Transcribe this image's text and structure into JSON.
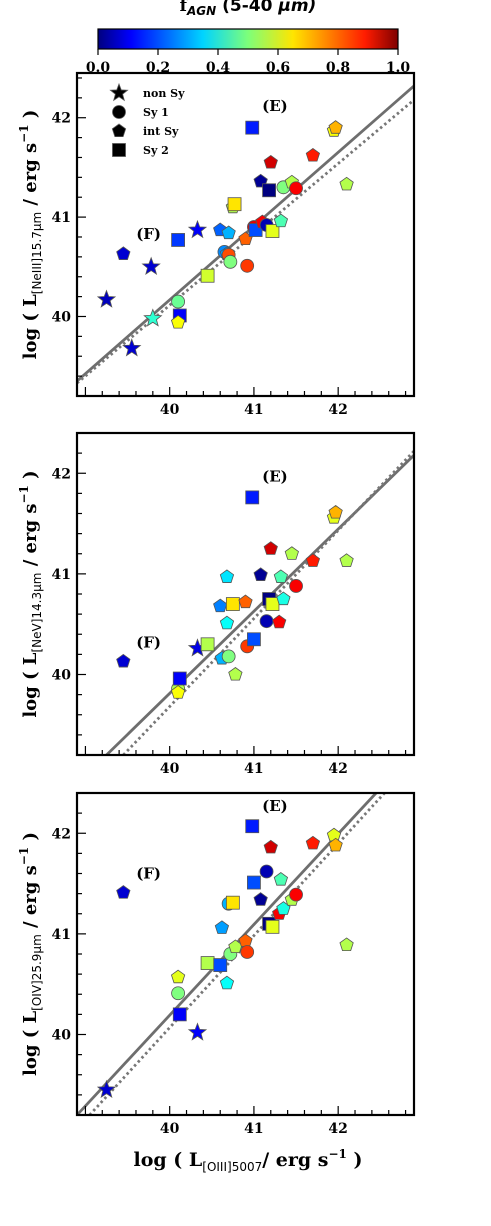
{
  "colorbar": {
    "title_main": "f",
    "title_sub": "AGN",
    "title_range": " (5-40 ",
    "title_unit": "μm)",
    "ticks": [
      "0.0",
      "0.2",
      "0.4",
      "0.6",
      "0.8",
      "1.0"
    ],
    "range": [
      0,
      1
    ],
    "colormap": "jet"
  },
  "legend": {
    "placement": "top-left",
    "entries": [
      {
        "label": "non Sy",
        "marker": "star"
      },
      {
        "label": "Sy 1",
        "marker": "circle"
      },
      {
        "label": "int Sy",
        "marker": "pentagon"
      },
      {
        "label": "Sy 2",
        "marker": "square"
      }
    ]
  },
  "xlabel": {
    "prefix": "log ( L",
    "sub": "[OIII]5007",
    "mid": "/ erg s",
    "sup": "−1",
    "suffix": " )"
  },
  "chart_data": [
    {
      "type": "scatter",
      "ylabel": {
        "prefix": "log ( L",
        "sub": "[NeIII]15.7μm",
        "mid": " / erg s",
        "sup": "−1",
        "suffix": " )"
      },
      "xlim": [
        38.9,
        42.9
      ],
      "ylim": [
        39.2,
        42.45
      ],
      "xticks": [
        "40",
        "41",
        "42"
      ],
      "yticks": [
        "40",
        "41",
        "42"
      ],
      "fit_solid": [
        [
          38.9,
          39.35
        ],
        [
          42.9,
          42.32
        ]
      ],
      "fit_dotted": [
        [
          38.9,
          39.33
        ],
        [
          42.9,
          42.18
        ]
      ],
      "annotations": [
        {
          "text": "(E)",
          "x": 41.25,
          "y": 42.07
        },
        {
          "text": "(F)",
          "x": 39.75,
          "y": 40.78
        }
      ],
      "points": [
        {
          "x": 39.45,
          "y": 40.63,
          "m": "pentagon",
          "f": 0.08
        },
        {
          "x": 39.25,
          "y": 40.17,
          "m": "star",
          "f": 0.06
        },
        {
          "x": 39.55,
          "y": 39.68,
          "m": "star",
          "f": 0.08
        },
        {
          "x": 39.78,
          "y": 40.5,
          "m": "star",
          "f": 0.08
        },
        {
          "x": 39.8,
          "y": 39.98,
          "m": "star",
          "f": 0.42
        },
        {
          "x": 40.1,
          "y": 40.77,
          "m": "square",
          "f": 0.18
        },
        {
          "x": 40.12,
          "y": 40.01,
          "m": "square",
          "f": 0.12
        },
        {
          "x": 40.1,
          "y": 40.15,
          "m": "circle",
          "f": 0.48
        },
        {
          "x": 40.1,
          "y": 39.94,
          "m": "pentagon",
          "f": 0.62
        },
        {
          "x": 40.33,
          "y": 40.87,
          "m": "star",
          "f": 0.12
        },
        {
          "x": 40.45,
          "y": 40.41,
          "m": "square",
          "f": 0.58
        },
        {
          "x": 40.6,
          "y": 40.87,
          "m": "pentagon",
          "f": 0.22
        },
        {
          "x": 40.65,
          "y": 40.65,
          "m": "circle",
          "f": 0.26
        },
        {
          "x": 40.68,
          "y": 40.63,
          "m": "pentagon",
          "f": 0.28
        },
        {
          "x": 40.7,
          "y": 40.84,
          "m": "pentagon",
          "f": 0.3
        },
        {
          "x": 40.7,
          "y": 40.62,
          "m": "circle",
          "f": 0.8
        },
        {
          "x": 40.72,
          "y": 40.55,
          "m": "circle",
          "f": 0.5
        },
        {
          "x": 40.75,
          "y": 41.1,
          "m": "pentagon",
          "f": 0.55
        },
        {
          "x": 40.77,
          "y": 41.13,
          "m": "square",
          "f": 0.65
        },
        {
          "x": 40.9,
          "y": 40.78,
          "m": "pentagon",
          "f": 0.78
        },
        {
          "x": 40.92,
          "y": 40.51,
          "m": "circle",
          "f": 0.82
        },
        {
          "x": 40.98,
          "y": 41.9,
          "m": "square",
          "f": 0.15
        },
        {
          "x": 41.0,
          "y": 40.9,
          "m": "circle",
          "f": 0.9
        },
        {
          "x": 41.02,
          "y": 40.87,
          "m": "square",
          "f": 0.2
        },
        {
          "x": 41.08,
          "y": 41.36,
          "m": "pentagon",
          "f": 0.02
        },
        {
          "x": 41.1,
          "y": 40.95,
          "m": "pentagon",
          "f": 0.88
        },
        {
          "x": 41.15,
          "y": 40.92,
          "m": "circle",
          "f": 0.05
        },
        {
          "x": 41.18,
          "y": 41.27,
          "m": "square",
          "f": 0.0
        },
        {
          "x": 41.2,
          "y": 41.55,
          "m": "pentagon",
          "f": 0.92
        },
        {
          "x": 41.22,
          "y": 40.86,
          "m": "square",
          "f": 0.6
        },
        {
          "x": 41.32,
          "y": 40.96,
          "m": "pentagon",
          "f": 0.45
        },
        {
          "x": 41.35,
          "y": 41.3,
          "m": "circle",
          "f": 0.5
        },
        {
          "x": 41.45,
          "y": 41.35,
          "m": "pentagon",
          "f": 0.55
        },
        {
          "x": 41.5,
          "y": 41.29,
          "m": "circle",
          "f": 0.88
        },
        {
          "x": 41.7,
          "y": 41.62,
          "m": "pentagon",
          "f": 0.85
        },
        {
          "x": 41.95,
          "y": 41.87,
          "m": "pentagon",
          "f": 0.62
        },
        {
          "x": 41.97,
          "y": 41.9,
          "m": "pentagon",
          "f": 0.7
        },
        {
          "x": 42.1,
          "y": 41.33,
          "m": "pentagon",
          "f": 0.55
        }
      ]
    },
    {
      "type": "scatter",
      "ylabel": {
        "prefix": "log ( L",
        "sub": "[NeV]14.3μm",
        "mid": " / erg s",
        "sup": "−1",
        "suffix": " )"
      },
      "xlim": [
        38.9,
        42.9
      ],
      "ylim": [
        39.2,
        42.4
      ],
      "xticks": [
        "40",
        "41",
        "42"
      ],
      "yticks": [
        "40",
        "41",
        "42"
      ],
      "fit_solid": [
        [
          39.25,
          39.2
        ],
        [
          42.9,
          42.18
        ]
      ],
      "fit_dotted": [
        [
          39.45,
          39.2
        ],
        [
          42.9,
          42.22
        ]
      ],
      "annotations": [
        {
          "text": "(E)",
          "x": 41.25,
          "y": 41.92
        },
        {
          "text": "(F)",
          "x": 39.75,
          "y": 40.27
        }
      ],
      "points": [
        {
          "x": 39.45,
          "y": 40.13,
          "m": "pentagon",
          "f": 0.08
        },
        {
          "x": 40.1,
          "y": 39.86,
          "m": "circle",
          "f": 0.55
        },
        {
          "x": 40.1,
          "y": 39.82,
          "m": "pentagon",
          "f": 0.62
        },
        {
          "x": 40.12,
          "y": 39.96,
          "m": "square",
          "f": 0.12
        },
        {
          "x": 40.33,
          "y": 40.26,
          "m": "star",
          "f": 0.1
        },
        {
          "x": 40.45,
          "y": 40.3,
          "m": "square",
          "f": 0.55
        },
        {
          "x": 40.6,
          "y": 40.68,
          "m": "pentagon",
          "f": 0.25
        },
        {
          "x": 40.62,
          "y": 40.16,
          "m": "pentagon",
          "f": 0.3
        },
        {
          "x": 40.68,
          "y": 40.97,
          "m": "pentagon",
          "f": 0.35
        },
        {
          "x": 40.68,
          "y": 40.51,
          "m": "pentagon",
          "f": 0.38
        },
        {
          "x": 40.7,
          "y": 40.18,
          "m": "circle",
          "f": 0.5
        },
        {
          "x": 40.75,
          "y": 40.7,
          "m": "square",
          "f": 0.65
        },
        {
          "x": 40.78,
          "y": 40.0,
          "m": "pentagon",
          "f": 0.55
        },
        {
          "x": 40.9,
          "y": 40.72,
          "m": "pentagon",
          "f": 0.78
        },
        {
          "x": 40.92,
          "y": 40.28,
          "m": "circle",
          "f": 0.82
        },
        {
          "x": 40.98,
          "y": 41.76,
          "m": "square",
          "f": 0.15
        },
        {
          "x": 41.0,
          "y": 40.35,
          "m": "square",
          "f": 0.2
        },
        {
          "x": 41.08,
          "y": 40.99,
          "m": "pentagon",
          "f": 0.02
        },
        {
          "x": 41.15,
          "y": 40.53,
          "m": "circle",
          "f": 0.05
        },
        {
          "x": 41.18,
          "y": 40.75,
          "m": "square",
          "f": 0.0
        },
        {
          "x": 41.2,
          "y": 41.25,
          "m": "pentagon",
          "f": 0.92
        },
        {
          "x": 41.22,
          "y": 40.7,
          "m": "square",
          "f": 0.6
        },
        {
          "x": 41.3,
          "y": 40.52,
          "m": "pentagon",
          "f": 0.88
        },
        {
          "x": 41.32,
          "y": 40.97,
          "m": "pentagon",
          "f": 0.45
        },
        {
          "x": 41.35,
          "y": 40.75,
          "m": "pentagon",
          "f": 0.4
        },
        {
          "x": 41.45,
          "y": 41.2,
          "m": "pentagon",
          "f": 0.55
        },
        {
          "x": 41.5,
          "y": 40.88,
          "m": "circle",
          "f": 0.88
        },
        {
          "x": 41.7,
          "y": 41.13,
          "m": "pentagon",
          "f": 0.85
        },
        {
          "x": 41.95,
          "y": 41.56,
          "m": "pentagon",
          "f": 0.6
        },
        {
          "x": 41.97,
          "y": 41.61,
          "m": "pentagon",
          "f": 0.7
        },
        {
          "x": 42.1,
          "y": 41.13,
          "m": "pentagon",
          "f": 0.55
        }
      ]
    },
    {
      "type": "scatter",
      "ylabel": {
        "prefix": "log ( L",
        "sub": "[OIV]25.9μm",
        "mid": " / erg s",
        "sup": "−1",
        "suffix": " )"
      },
      "xlim": [
        38.9,
        42.9
      ],
      "ylim": [
        39.2,
        42.4
      ],
      "xticks": [
        "40",
        "41",
        "42"
      ],
      "yticks": [
        "40",
        "41",
        "42"
      ],
      "fit_solid": [
        [
          38.9,
          39.2
        ],
        [
          42.45,
          42.4
        ]
      ],
      "fit_dotted": [
        [
          39.05,
          39.2
        ],
        [
          42.55,
          42.4
        ]
      ],
      "annotations": [
        {
          "text": "(E)",
          "x": 41.25,
          "y": 42.22
        },
        {
          "text": "(F)",
          "x": 39.75,
          "y": 41.55
        }
      ],
      "points": [
        {
          "x": 39.45,
          "y": 41.41,
          "m": "pentagon",
          "f": 0.08
        },
        {
          "x": 39.25,
          "y": 39.45,
          "m": "star",
          "f": 0.08
        },
        {
          "x": 40.33,
          "y": 40.02,
          "m": "star",
          "f": 0.12
        },
        {
          "x": 40.1,
          "y": 40.57,
          "m": "pentagon",
          "f": 0.6
        },
        {
          "x": 40.1,
          "y": 40.41,
          "m": "circle",
          "f": 0.5
        },
        {
          "x": 40.12,
          "y": 40.2,
          "m": "square",
          "f": 0.12
        },
        {
          "x": 40.45,
          "y": 40.71,
          "m": "square",
          "f": 0.55
        },
        {
          "x": 40.6,
          "y": 40.69,
          "m": "square",
          "f": 0.2
        },
        {
          "x": 40.62,
          "y": 41.06,
          "m": "pentagon",
          "f": 0.28
        },
        {
          "x": 40.68,
          "y": 40.51,
          "m": "pentagon",
          "f": 0.38
        },
        {
          "x": 40.7,
          "y": 41.3,
          "m": "circle",
          "f": 0.3
        },
        {
          "x": 40.72,
          "y": 40.8,
          "m": "circle",
          "f": 0.5
        },
        {
          "x": 40.75,
          "y": 41.31,
          "m": "square",
          "f": 0.65
        },
        {
          "x": 40.78,
          "y": 40.87,
          "m": "pentagon",
          "f": 0.55
        },
        {
          "x": 40.9,
          "y": 40.93,
          "m": "pentagon",
          "f": 0.78
        },
        {
          "x": 40.92,
          "y": 40.82,
          "m": "circle",
          "f": 0.82
        },
        {
          "x": 40.98,
          "y": 42.07,
          "m": "square",
          "f": 0.15
        },
        {
          "x": 41.0,
          "y": 41.51,
          "m": "square",
          "f": 0.2
        },
        {
          "x": 41.08,
          "y": 41.34,
          "m": "pentagon",
          "f": 0.02
        },
        {
          "x": 41.15,
          "y": 41.62,
          "m": "circle",
          "f": 0.05
        },
        {
          "x": 41.18,
          "y": 41.1,
          "m": "square",
          "f": 0.0
        },
        {
          "x": 41.2,
          "y": 41.86,
          "m": "pentagon",
          "f": 0.92
        },
        {
          "x": 41.22,
          "y": 41.07,
          "m": "square",
          "f": 0.6
        },
        {
          "x": 41.3,
          "y": 41.2,
          "m": "pentagon",
          "f": 0.88
        },
        {
          "x": 41.32,
          "y": 41.54,
          "m": "pentagon",
          "f": 0.45
        },
        {
          "x": 41.35,
          "y": 41.25,
          "m": "pentagon",
          "f": 0.4
        },
        {
          "x": 41.45,
          "y": 41.34,
          "m": "pentagon",
          "f": 0.55
        },
        {
          "x": 41.5,
          "y": 41.39,
          "m": "circle",
          "f": 0.88
        },
        {
          "x": 41.7,
          "y": 41.9,
          "m": "pentagon",
          "f": 0.85
        },
        {
          "x": 41.95,
          "y": 41.98,
          "m": "pentagon",
          "f": 0.6
        },
        {
          "x": 41.97,
          "y": 41.88,
          "m": "pentagon",
          "f": 0.7
        },
        {
          "x": 42.1,
          "y": 40.89,
          "m": "pentagon",
          "f": 0.55
        }
      ]
    }
  ]
}
